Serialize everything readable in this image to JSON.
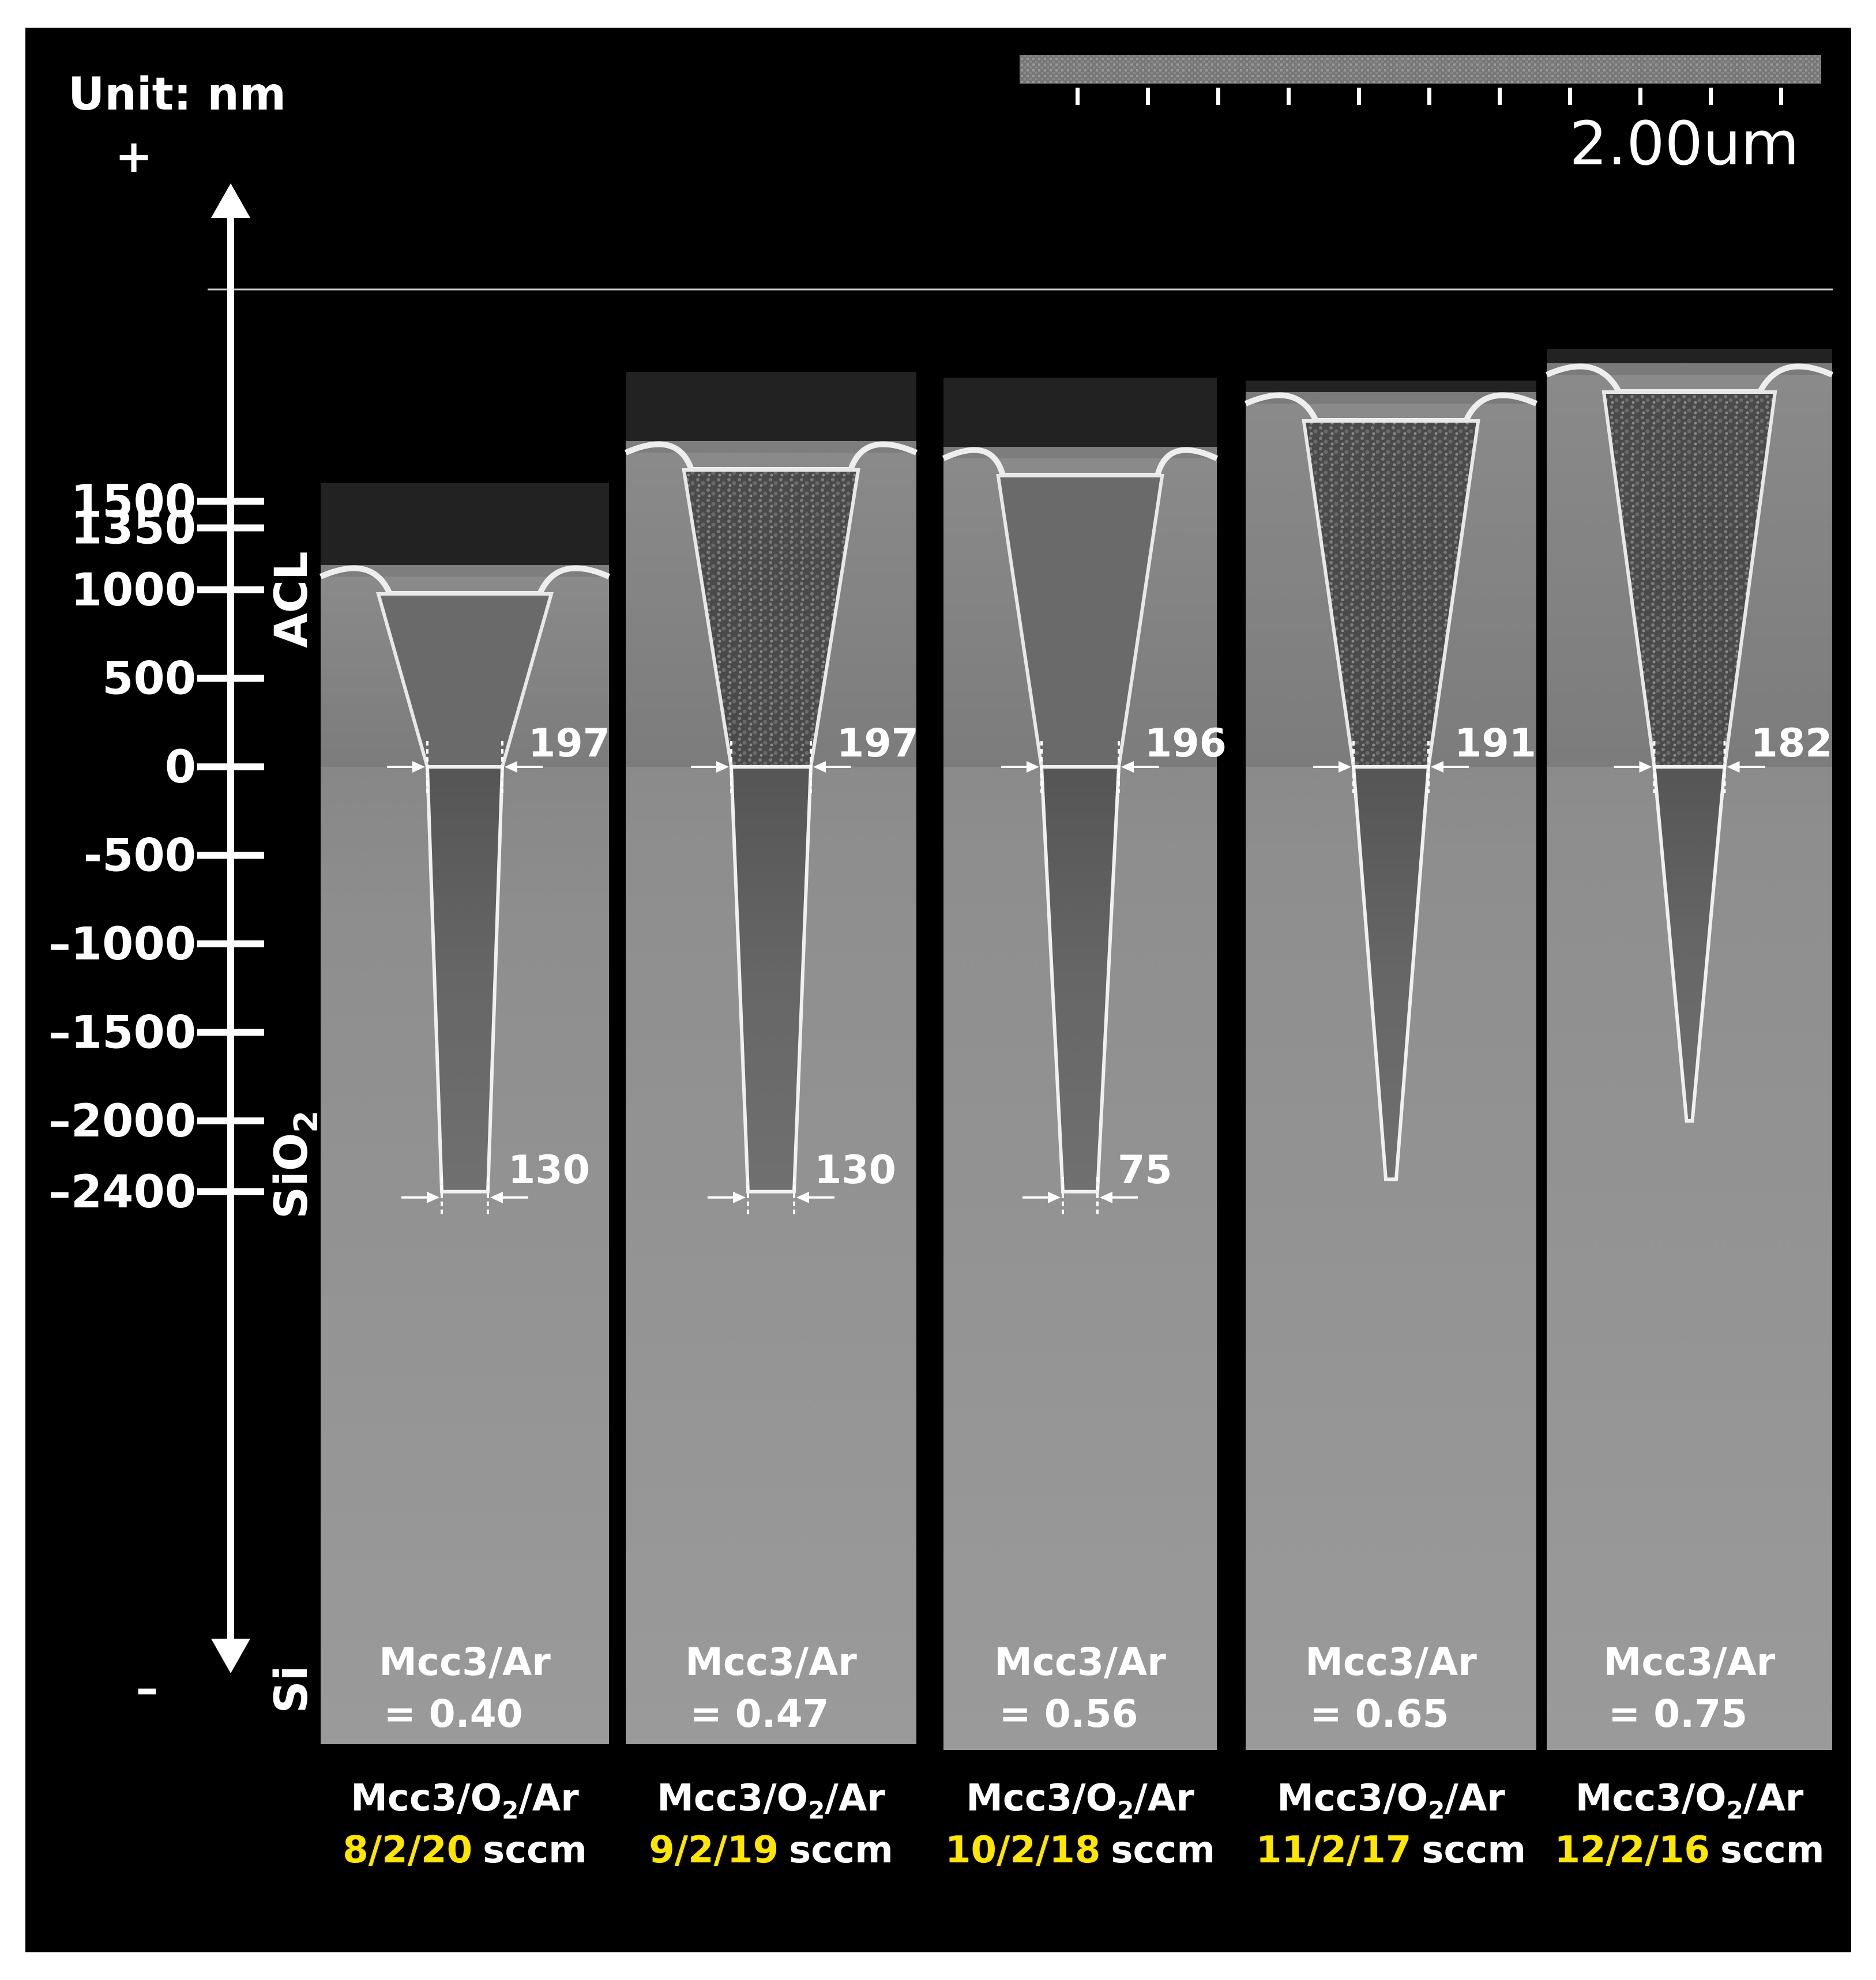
{
  "unit_label": "Unit: nm",
  "plus_sign": "+",
  "minus_sign": "–",
  "scale_bar": {
    "label": "2.00um"
  },
  "axis": {
    "ticks": [
      {
        "label": "1500",
        "value": 1500
      },
      {
        "label": "1350",
        "value": 1350
      },
      {
        "label": "1000",
        "value": 1000
      },
      {
        "label": "500",
        "value": 500
      },
      {
        "label": "0",
        "value": 0
      },
      {
        "label": "-500",
        "value": -500
      },
      {
        "label": "–1000",
        "value": -1000
      },
      {
        "label": "–1500",
        "value": -1500
      },
      {
        "label": "–2000",
        "value": -2000
      },
      {
        "label": "–2400",
        "value": -2400
      }
    ],
    "layers": {
      "acl": "ACL",
      "sio2_base": "SiO",
      "sio2_sub": "2",
      "si": "Si"
    }
  },
  "samples": [
    {
      "top_cd": "197",
      "bottom_cd": "130",
      "ratio_label": "Mcc3/Ar",
      "ratio_value": "= 0.40",
      "gas_label": "Mcc3/O",
      "gas_sub": "2",
      "gas_suffix": "/Ar",
      "flow": "8/2/20",
      "flow_unit": "sccm"
    },
    {
      "top_cd": "197",
      "bottom_cd": "130",
      "ratio_label": "Mcc3/Ar",
      "ratio_value": "= 0.47",
      "gas_label": "Mcc3/O",
      "gas_sub": "2",
      "gas_suffix": "/Ar",
      "flow": "9/2/19",
      "flow_unit": "sccm"
    },
    {
      "top_cd": "196",
      "bottom_cd": "75",
      "ratio_label": "Mcc3/Ar",
      "ratio_value": "= 0.56",
      "gas_label": "Mcc3/O",
      "gas_sub": "2",
      "gas_suffix": "/Ar",
      "flow": "10/2/18",
      "flow_unit": "sccm"
    },
    {
      "top_cd": "191",
      "bottom_cd": "",
      "ratio_label": "Mcc3/Ar",
      "ratio_value": "= 0.65",
      "gas_label": "Mcc3/O",
      "gas_sub": "2",
      "gas_suffix": "/Ar",
      "flow": "11/2/17",
      "flow_unit": "sccm"
    },
    {
      "top_cd": "182",
      "bottom_cd": "",
      "ratio_label": "Mcc3/Ar",
      "ratio_value": "= 0.75",
      "gas_label": "Mcc3/O",
      "gas_sub": "2",
      "gas_suffix": "/Ar",
      "flow": "12/2/16",
      "flow_unit": "sccm"
    }
  ]
}
